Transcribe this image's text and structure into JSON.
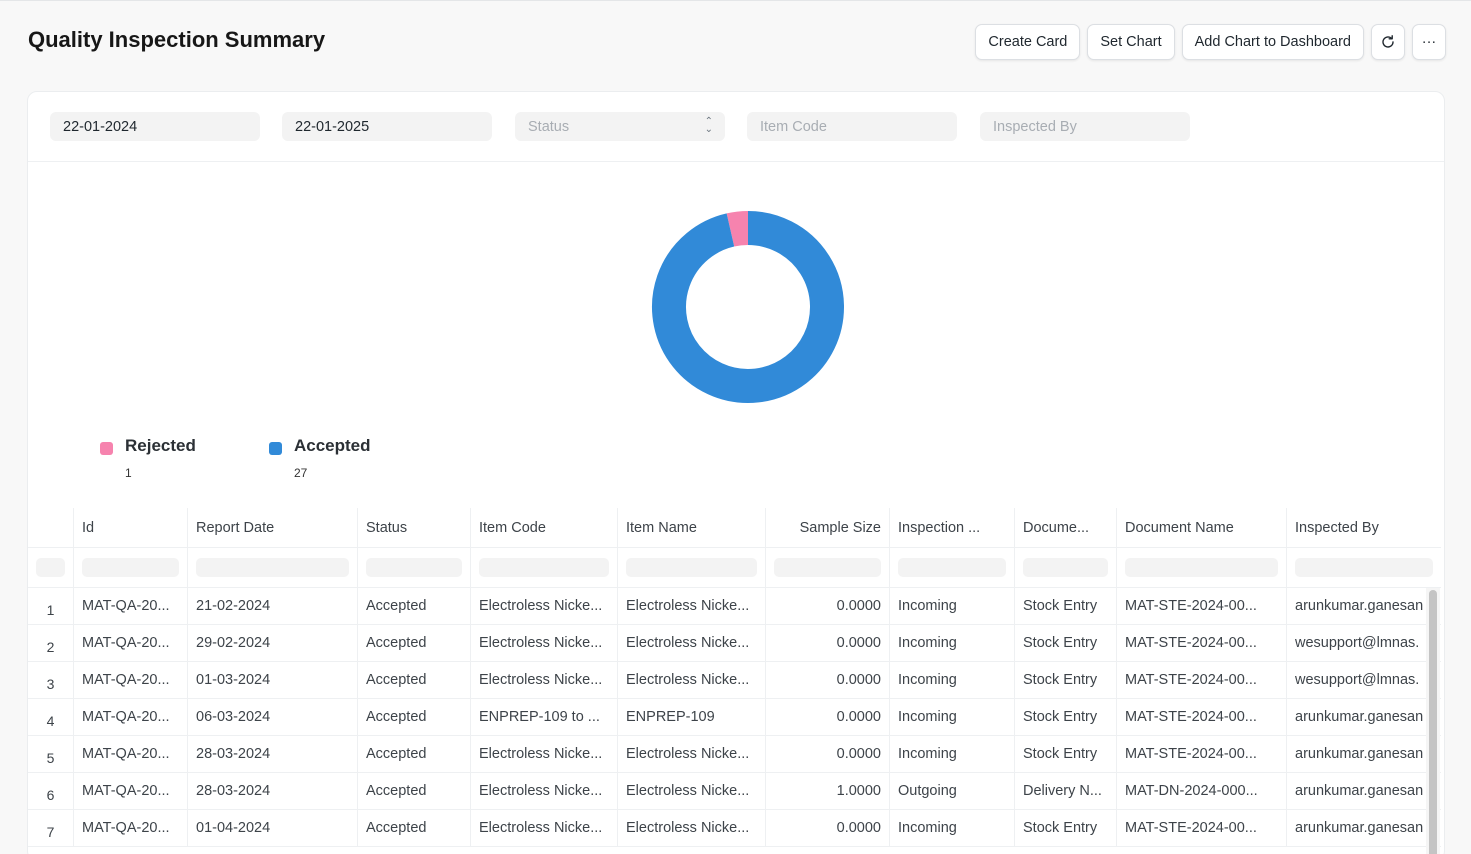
{
  "header": {
    "title": "Quality Inspection Summary",
    "buttons": {
      "create_card": "Create Card",
      "set_chart": "Set Chart",
      "add_chart": "Add Chart to Dashboard",
      "refresh_icon": "refresh-icon",
      "more": "···"
    }
  },
  "filters": {
    "from_date": "22-01-2024",
    "to_date": "22-01-2025",
    "status_placeholder": "Status",
    "item_code_placeholder": "Item Code",
    "inspected_by_placeholder": "Inspected By"
  },
  "chart_data": {
    "type": "pie",
    "donut": true,
    "title": "",
    "slices": [
      {
        "label": "Rejected",
        "value": 1,
        "color": "#f683ae"
      },
      {
        "label": "Accepted",
        "value": 27,
        "color": "#318ad8"
      }
    ],
    "legend_placement": "bottom-left"
  },
  "legend": {
    "rejected_label": "Rejected",
    "rejected_value": "1",
    "accepted_label": "Accepted",
    "accepted_value": "27"
  },
  "table": {
    "columns": [
      "Id",
      "Report Date",
      "Status",
      "Item Code",
      "Item Name",
      "Sample Size",
      "Inspection ...",
      "Docume...",
      "Document Name",
      "Inspected By"
    ],
    "rows": [
      {
        "idx": "1",
        "id": "MAT-QA-20...",
        "date": "21-02-2024",
        "status": "Accepted",
        "item_code": "Electroless Nicke...",
        "item_name": "Electroless Nicke...",
        "sample": "0.0000",
        "insp": "Incoming",
        "doc": "Stock Entry",
        "doc_name": "MAT-STE-2024-00...",
        "by": "arunkumar.ganesan"
      },
      {
        "idx": "2",
        "id": "MAT-QA-20...",
        "date": "29-02-2024",
        "status": "Accepted",
        "item_code": "Electroless Nicke...",
        "item_name": "Electroless Nicke...",
        "sample": "0.0000",
        "insp": "Incoming",
        "doc": "Stock Entry",
        "doc_name": "MAT-STE-2024-00...",
        "by": "wesupport@lmnas."
      },
      {
        "idx": "3",
        "id": "MAT-QA-20...",
        "date": "01-03-2024",
        "status": "Accepted",
        "item_code": "Electroless Nicke...",
        "item_name": "Electroless Nicke...",
        "sample": "0.0000",
        "insp": "Incoming",
        "doc": "Stock Entry",
        "doc_name": "MAT-STE-2024-00...",
        "by": "wesupport@lmnas."
      },
      {
        "idx": "4",
        "id": "MAT-QA-20...",
        "date": "06-03-2024",
        "status": "Accepted",
        "item_code": "ENPREP-109 to ...",
        "item_name": "ENPREP-109",
        "sample": "0.0000",
        "insp": "Incoming",
        "doc": "Stock Entry",
        "doc_name": "MAT-STE-2024-00...",
        "by": "arunkumar.ganesan"
      },
      {
        "idx": "5",
        "id": "MAT-QA-20...",
        "date": "28-03-2024",
        "status": "Accepted",
        "item_code": "Electroless Nicke...",
        "item_name": "Electroless Nicke...",
        "sample": "0.0000",
        "insp": "Incoming",
        "doc": "Stock Entry",
        "doc_name": "MAT-STE-2024-00...",
        "by": "arunkumar.ganesan"
      },
      {
        "idx": "6",
        "id": "MAT-QA-20...",
        "date": "28-03-2024",
        "status": "Accepted",
        "item_code": "Electroless Nicke...",
        "item_name": "Electroless Nicke...",
        "sample": "1.0000",
        "insp": "Outgoing",
        "doc": "Delivery N...",
        "doc_name": "MAT-DN-2024-000...",
        "by": "arunkumar.ganesan"
      },
      {
        "idx": "7",
        "id": "MAT-QA-20...",
        "date": "01-04-2024",
        "status": "Accepted",
        "item_code": "Electroless Nicke...",
        "item_name": "Electroless Nicke...",
        "sample": "0.0000",
        "insp": "Incoming",
        "doc": "Stock Entry",
        "doc_name": "MAT-STE-2024-00...",
        "by": "arunkumar.ganesan"
      }
    ]
  }
}
